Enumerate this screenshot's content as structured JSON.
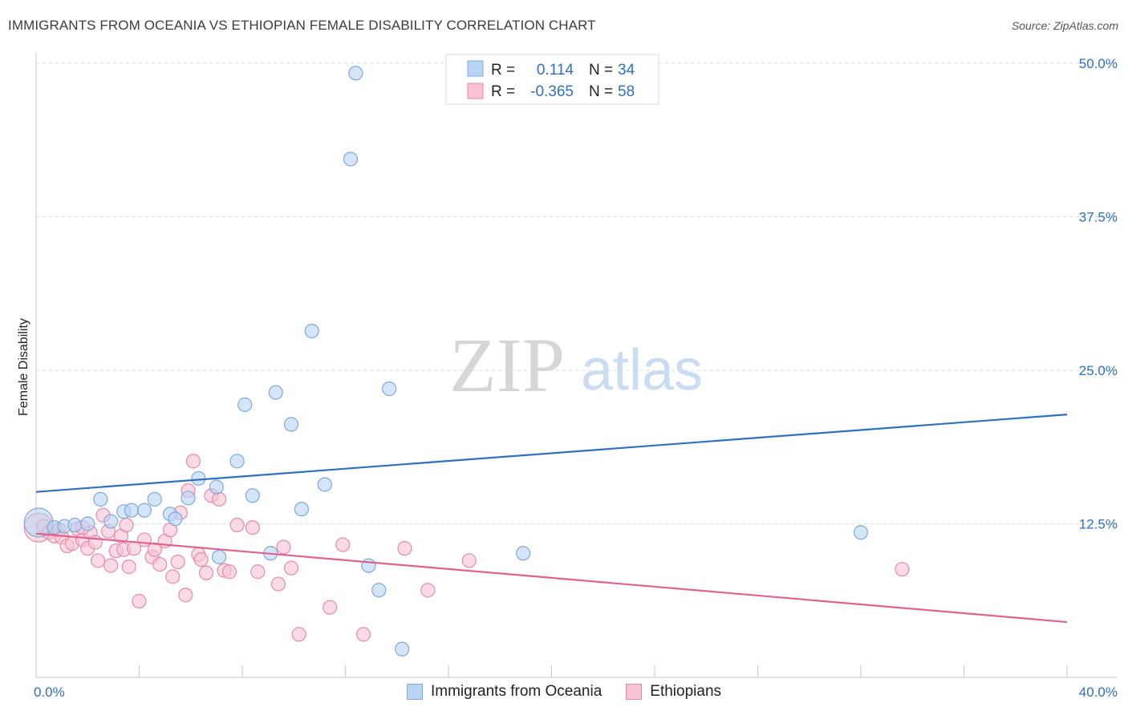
{
  "title": "IMMIGRANTS FROM OCEANIA VS ETHIOPIAN FEMALE DISABILITY CORRELATION CHART",
  "source": "Source: ZipAtlas.com",
  "watermark": {
    "zip": "ZIP",
    "atlas": "atlas"
  },
  "colors": {
    "blue_fill": "#b8d3f4",
    "blue_stroke": "#7fa8dc",
    "blue_line": "#2f6fc4",
    "pink_fill": "#f7c3d4",
    "pink_stroke": "#e88aac",
    "pink_line": "#e0628f",
    "grid": "#dcdcdc",
    "value_text": "#2f6fc4"
  },
  "legend": {
    "rows": [
      {
        "r_label": "R =",
        "r_value": "0.114",
        "n_label": "N =",
        "n_value": "34"
      },
      {
        "r_label": "R =",
        "r_value": "-0.365",
        "n_label": "N =",
        "n_value": "58"
      }
    ]
  },
  "bottom_legend": [
    "Immigrants from Oceania",
    "Ethiopians"
  ],
  "chart_data": {
    "type": "scatter",
    "title": "IMMIGRANTS FROM OCEANIA VS ETHIOPIAN FEMALE DISABILITY CORRELATION CHART",
    "xlabel": "",
    "ylabel": "Female Disability",
    "xlim": [
      0,
      40
    ],
    "ylim": [
      0,
      50
    ],
    "x_tick_labels": [
      "0.0%",
      "40.0%"
    ],
    "y_tick_labels": [
      "12.5%",
      "25.0%",
      "37.5%",
      "50.0%"
    ],
    "y_ticks": [
      12.5,
      25.0,
      37.5,
      50.0
    ],
    "grid": true,
    "legend_position": "top-center",
    "series": [
      {
        "name": "Immigrants from Oceania",
        "color": "#b8d3f4",
        "trend": {
          "x": [
            0,
            40
          ],
          "y": [
            15.1,
            21.4
          ]
        },
        "points": [
          {
            "x": 0.1,
            "y": 12.6,
            "big": true
          },
          {
            "x": 0.7,
            "y": 12.2
          },
          {
            "x": 1.1,
            "y": 12.3
          },
          {
            "x": 1.5,
            "y": 12.4
          },
          {
            "x": 2.0,
            "y": 12.5
          },
          {
            "x": 2.5,
            "y": 14.5
          },
          {
            "x": 2.9,
            "y": 12.7
          },
          {
            "x": 3.4,
            "y": 13.5
          },
          {
            "x": 3.7,
            "y": 13.6
          },
          {
            "x": 4.2,
            "y": 13.6
          },
          {
            "x": 4.6,
            "y": 14.5
          },
          {
            "x": 5.2,
            "y": 13.3
          },
          {
            "x": 5.4,
            "y": 12.9
          },
          {
            "x": 5.9,
            "y": 14.6
          },
          {
            "x": 6.3,
            "y": 16.2
          },
          {
            "x": 7.0,
            "y": 15.5
          },
          {
            "x": 7.1,
            "y": 9.8
          },
          {
            "x": 7.8,
            "y": 17.6
          },
          {
            "x": 8.1,
            "y": 22.2
          },
          {
            "x": 8.4,
            "y": 14.8
          },
          {
            "x": 9.1,
            "y": 10.1
          },
          {
            "x": 9.3,
            "y": 23.2
          },
          {
            "x": 9.9,
            "y": 20.6
          },
          {
            "x": 10.3,
            "y": 13.7
          },
          {
            "x": 10.7,
            "y": 28.2
          },
          {
            "x": 11.2,
            "y": 15.7
          },
          {
            "x": 12.2,
            "y": 42.2
          },
          {
            "x": 12.4,
            "y": 49.2
          },
          {
            "x": 12.9,
            "y": 9.1
          },
          {
            "x": 13.3,
            "y": 7.1
          },
          {
            "x": 13.7,
            "y": 23.5
          },
          {
            "x": 14.2,
            "y": 2.3
          },
          {
            "x": 18.9,
            "y": 10.1
          },
          {
            "x": 32.0,
            "y": 11.8
          }
        ]
      },
      {
        "name": "Ethiopians",
        "color": "#f7c3d4",
        "trend": {
          "x": [
            0,
            40
          ],
          "y": [
            11.7,
            4.5
          ]
        },
        "points": [
          {
            "x": 0.1,
            "y": 12.2,
            "big": true
          },
          {
            "x": 0.3,
            "y": 12.3
          },
          {
            "x": 0.5,
            "y": 11.8
          },
          {
            "x": 0.7,
            "y": 11.5
          },
          {
            "x": 0.9,
            "y": 12.0
          },
          {
            "x": 1.0,
            "y": 11.4
          },
          {
            "x": 1.2,
            "y": 10.7
          },
          {
            "x": 1.4,
            "y": 10.9
          },
          {
            "x": 1.6,
            "y": 12.1
          },
          {
            "x": 1.8,
            "y": 11.2
          },
          {
            "x": 2.0,
            "y": 10.5
          },
          {
            "x": 2.1,
            "y": 11.8
          },
          {
            "x": 2.3,
            "y": 11.0
          },
          {
            "x": 2.4,
            "y": 9.5
          },
          {
            "x": 2.6,
            "y": 13.2
          },
          {
            "x": 2.8,
            "y": 11.9
          },
          {
            "x": 2.9,
            "y": 9.1
          },
          {
            "x": 3.1,
            "y": 10.3
          },
          {
            "x": 3.3,
            "y": 11.5
          },
          {
            "x": 3.4,
            "y": 10.4
          },
          {
            "x": 3.5,
            "y": 12.4
          },
          {
            "x": 3.6,
            "y": 9.0
          },
          {
            "x": 3.8,
            "y": 10.5
          },
          {
            "x": 4.0,
            "y": 6.2
          },
          {
            "x": 4.2,
            "y": 11.2
          },
          {
            "x": 4.5,
            "y": 9.8
          },
          {
            "x": 4.6,
            "y": 10.4
          },
          {
            "x": 4.8,
            "y": 9.2
          },
          {
            "x": 5.0,
            "y": 11.1
          },
          {
            "x": 5.2,
            "y": 12.0
          },
          {
            "x": 5.3,
            "y": 8.2
          },
          {
            "x": 5.5,
            "y": 9.4
          },
          {
            "x": 5.6,
            "y": 13.4
          },
          {
            "x": 5.8,
            "y": 6.7
          },
          {
            "x": 5.9,
            "y": 15.2
          },
          {
            "x": 6.1,
            "y": 17.6
          },
          {
            "x": 6.3,
            "y": 10.0
          },
          {
            "x": 6.4,
            "y": 9.6
          },
          {
            "x": 6.6,
            "y": 8.5
          },
          {
            "x": 6.8,
            "y": 14.8
          },
          {
            "x": 7.1,
            "y": 14.5
          },
          {
            "x": 7.3,
            "y": 8.7
          },
          {
            "x": 7.8,
            "y": 12.4
          },
          {
            "x": 7.5,
            "y": 8.6
          },
          {
            "x": 8.4,
            "y": 12.2
          },
          {
            "x": 8.6,
            "y": 8.6
          },
          {
            "x": 9.4,
            "y": 7.6
          },
          {
            "x": 9.6,
            "y": 10.6
          },
          {
            "x": 9.9,
            "y": 8.9
          },
          {
            "x": 10.2,
            "y": 3.5
          },
          {
            "x": 11.4,
            "y": 5.7
          },
          {
            "x": 11.9,
            "y": 10.8
          },
          {
            "x": 12.7,
            "y": 3.5
          },
          {
            "x": 14.3,
            "y": 10.5
          },
          {
            "x": 15.2,
            "y": 7.1
          },
          {
            "x": 16.8,
            "y": 9.5
          },
          {
            "x": 33.6,
            "y": 8.8
          },
          {
            "x": 1.8,
            "y": 12.2
          }
        ]
      }
    ]
  }
}
